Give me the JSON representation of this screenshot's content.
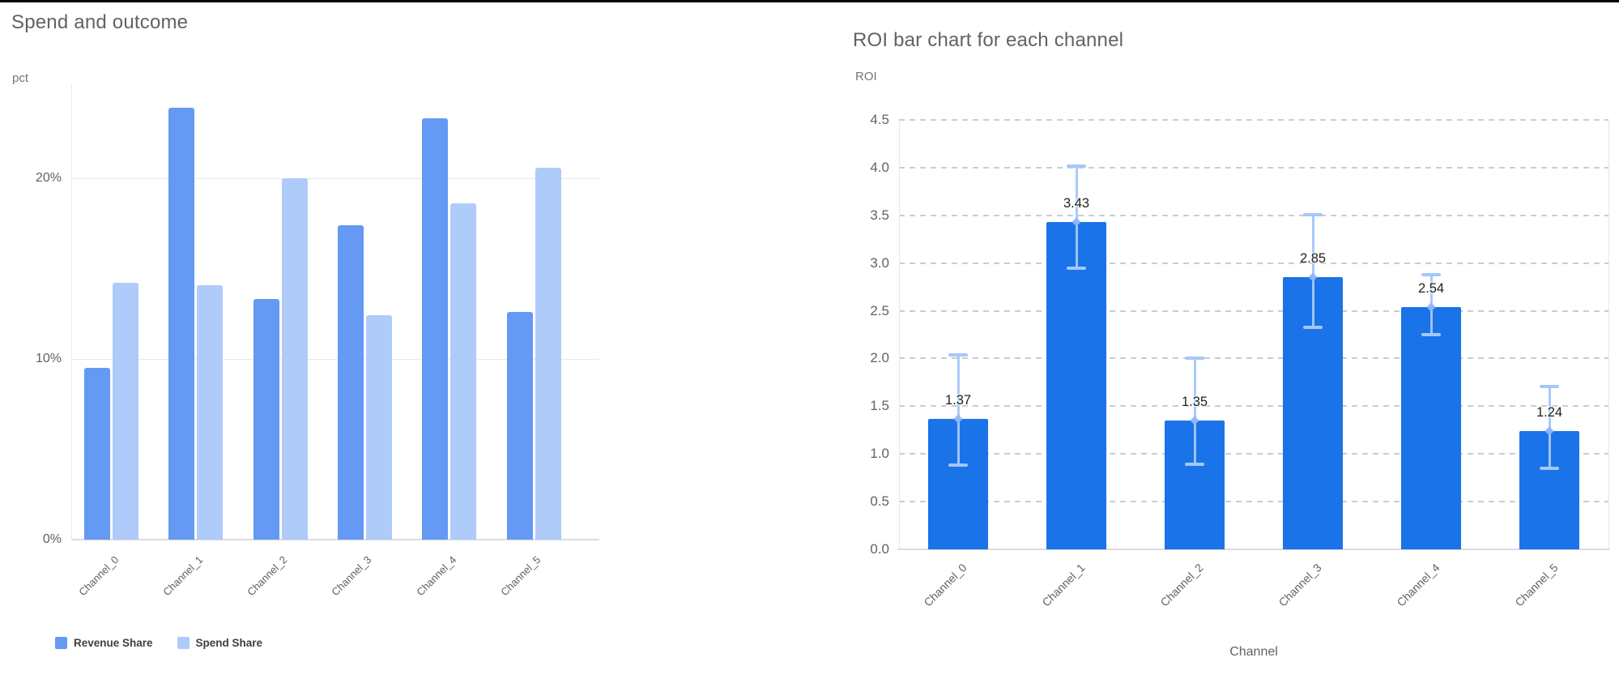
{
  "page": {
    "background": "#ffffff"
  },
  "chart_data": [
    {
      "type": "bar",
      "title": "Spend and outcome",
      "ylabel": "pct",
      "xlabel": "",
      "categories": [
        "Channel_0",
        "Channel_1",
        "Channel_2",
        "Channel_3",
        "Channel_4",
        "Channel_5"
      ],
      "series": [
        {
          "name": "Revenue Share",
          "color": "#6499f4",
          "values": [
            9.5,
            23.9,
            13.3,
            17.4,
            23.3,
            12.6
          ]
        },
        {
          "name": "Spend Share",
          "color": "#aecbfa",
          "values": [
            14.2,
            14.1,
            20.0,
            12.4,
            18.6,
            20.6
          ]
        }
      ],
      "unit": "percent",
      "y_ticks": [
        "0%",
        "10%",
        "20%"
      ],
      "y_tick_values": [
        0,
        10,
        20
      ],
      "ylim": [
        0,
        25.4
      ],
      "grid": "horizontal-solid",
      "legend_position": "bottom-left"
    },
    {
      "type": "bar",
      "title": "ROI bar chart for each channel",
      "ylabel": "ROI",
      "xlabel": "Channel",
      "categories": [
        "Channel_0",
        "Channel_1",
        "Channel_2",
        "Channel_3",
        "Channel_4",
        "Channel_5"
      ],
      "values": [
        1.37,
        3.43,
        1.35,
        2.85,
        2.54,
        1.24
      ],
      "value_labels": [
        "1.37",
        "3.43",
        "1.35",
        "2.85",
        "2.54",
        "1.24"
      ],
      "error_low": [
        0.88,
        2.95,
        0.89,
        2.33,
        2.25,
        0.85
      ],
      "error_high": [
        2.04,
        4.02,
        2.0,
        3.51,
        2.88,
        1.71
      ],
      "bar_color": "#1a73e8",
      "error_color": "#a5c7fa",
      "y_ticks": [
        "0.0",
        "0.5",
        "1.0",
        "1.5",
        "2.0",
        "2.5",
        "3.0",
        "3.5",
        "4.0",
        "4.5"
      ],
      "y_tick_values": [
        0,
        0.5,
        1.0,
        1.5,
        2.0,
        2.5,
        3.0,
        3.5,
        4.0,
        4.5
      ],
      "ylim": [
        0,
        4.5
      ],
      "grid": "horizontal-dashed",
      "legend_position": "none"
    }
  ]
}
